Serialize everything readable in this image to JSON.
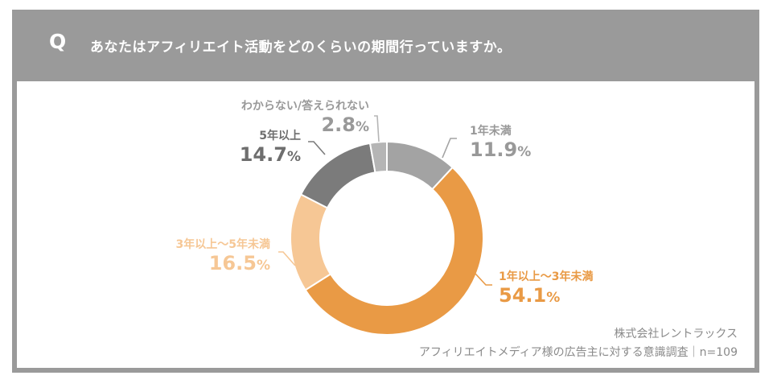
{
  "header": {
    "q_mark": "Q",
    "question": "あなたはアフィリエイト活動をどのくらいの期間行っていますか。"
  },
  "chart_data": {
    "type": "pie",
    "title": "あなたはアフィリエイト活動をどのくらいの期間行っていますか。",
    "donut": true,
    "unit": "%",
    "categories": [
      "1年未満",
      "1年以上～3年未満",
      "3年以上～5年未満",
      "5年以上",
      "わからない/答えられない"
    ],
    "values": [
      11.9,
      54.1,
      16.5,
      14.7,
      2.8
    ],
    "value_labels": [
      "11.9",
      "54.1",
      "16.5",
      "14.7",
      "2.8"
    ],
    "colors": [
      "#a3a3a3",
      "#e99a45",
      "#f6c795",
      "#7b7b7b",
      "#b5b5b5"
    ]
  },
  "source": {
    "company": "株式会社レントラックス",
    "survey": "アフィリエイトメディア様の広告主に対する意識調査｜n=109"
  }
}
